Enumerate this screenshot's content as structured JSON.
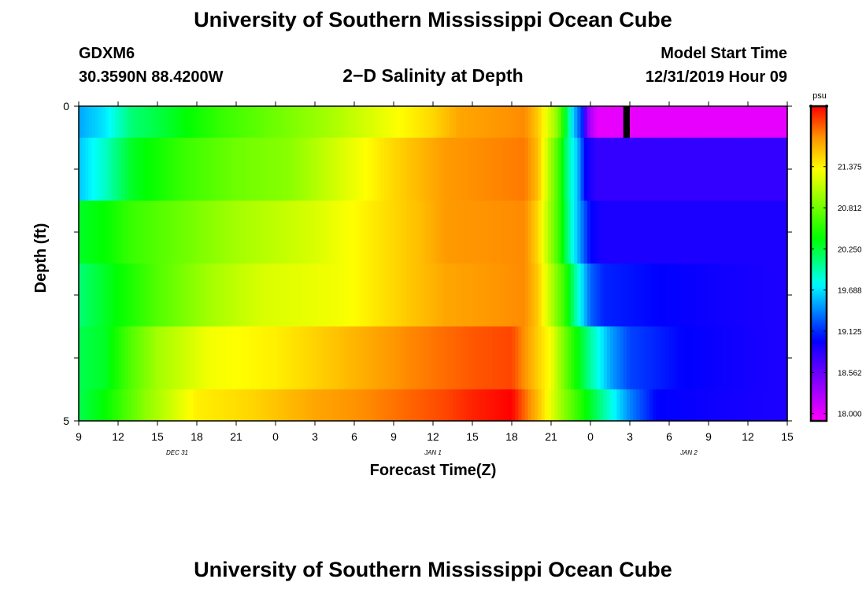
{
  "header": {
    "title": "University of Southern Mississippi Ocean Cube",
    "station_id": "GDXM6",
    "coordinates": "30.3590N 88.4200W",
    "subtitle": "2−D Salinity at Depth",
    "model_label": "Model Start Time",
    "model_time": "12/31/2019 Hour 09"
  },
  "footer": {
    "title": "University of Southern Mississippi Ocean Cube"
  },
  "chart_data": {
    "type": "heatmap",
    "title": "2−D Salinity at Depth",
    "xlabel": "Forecast Time(Z)",
    "ylabel": "Depth (ft)",
    "x_range_hours": [
      0,
      54
    ],
    "y_range": [
      0,
      5
    ],
    "x_tick_labels": [
      "9",
      "12",
      "15",
      "18",
      "21",
      "0",
      "3",
      "6",
      "9",
      "12",
      "15",
      "18",
      "21",
      "0",
      "3",
      "6",
      "9",
      "12",
      "15"
    ],
    "y_tick_labels": [
      "0",
      "5"
    ],
    "date_labels": [
      {
        "label": "DEC 31",
        "hour": 7.5
      },
      {
        "label": "JAN 1",
        "hour": 27
      },
      {
        "label": "JAN 2",
        "hour": 46.5
      }
    ],
    "colorbar": {
      "unit": "psu",
      "min": 17.9,
      "max": 22.2,
      "tick_labels": [
        "21.375",
        "20.812",
        "20.250",
        "19.688",
        "19.125",
        "18.562",
        "18.000"
      ],
      "tick_values": [
        21.375,
        20.812,
        20.25,
        19.688,
        19.125,
        18.562,
        18.0
      ]
    },
    "colors": {
      "frame": "#000000",
      "missing": "#000000"
    },
    "layers": [
      {
        "depth_range": [
          0,
          0.5
        ],
        "profile": [
          [
            0,
            19.5
          ],
          [
            2,
            19.7
          ],
          [
            4,
            20.1
          ],
          [
            7,
            20.3
          ],
          [
            11,
            20.6
          ],
          [
            15,
            20.8
          ],
          [
            19,
            21.0
          ],
          [
            23,
            21.25
          ],
          [
            27,
            21.5
          ],
          [
            29,
            21.7
          ],
          [
            34,
            21.8
          ],
          [
            35,
            21.55
          ],
          [
            36.5,
            20.9
          ],
          [
            37.2,
            20.2
          ],
          [
            37.6,
            19.7
          ],
          [
            38.4,
            19.1
          ],
          [
            38.8,
            18.4
          ],
          [
            39.5,
            18.0
          ],
          [
            54,
            18.0
          ]
        ],
        "missing": [
          41.5,
          42
        ]
      },
      {
        "depth_range": [
          0.5,
          1.5
        ],
        "profile": [
          [
            0,
            19.6
          ],
          [
            2,
            19.9
          ],
          [
            4,
            20.3
          ],
          [
            8,
            20.6
          ],
          [
            12,
            20.8
          ],
          [
            16,
            20.9
          ],
          [
            20,
            21.2
          ],
          [
            24,
            21.5
          ],
          [
            28,
            21.75
          ],
          [
            34,
            21.85
          ],
          [
            35,
            21.6
          ],
          [
            36.6,
            20.6
          ],
          [
            37.3,
            20.0
          ],
          [
            38,
            19.6
          ],
          [
            38.6,
            19.0
          ],
          [
            39.5,
            18.8
          ],
          [
            42,
            18.8
          ],
          [
            54,
            18.8
          ]
        ],
        "missing": null
      },
      {
        "depth_range": [
          1.5,
          2.5
        ],
        "profile": [
          [
            0,
            20.3
          ],
          [
            2,
            20.4
          ],
          [
            4,
            20.6
          ],
          [
            8,
            20.8
          ],
          [
            12,
            21.0
          ],
          [
            18,
            21.2
          ],
          [
            22,
            21.4
          ],
          [
            26,
            21.6
          ],
          [
            28,
            21.75
          ],
          [
            34,
            21.8
          ],
          [
            35,
            21.5
          ],
          [
            36.6,
            20.6
          ],
          [
            37.5,
            19.9
          ],
          [
            38.3,
            19.4
          ],
          [
            39,
            19.0
          ],
          [
            40,
            18.9
          ],
          [
            54,
            18.9
          ]
        ],
        "missing": null
      },
      {
        "depth_range": [
          2.5,
          3.5
        ],
        "profile": [
          [
            0,
            20.1
          ],
          [
            3,
            20.4
          ],
          [
            6,
            20.7
          ],
          [
            10,
            21.0
          ],
          [
            14,
            21.2
          ],
          [
            20,
            21.3
          ],
          [
            24,
            21.5
          ],
          [
            28,
            21.7
          ],
          [
            34,
            21.8
          ],
          [
            35,
            21.55
          ],
          [
            37,
            20.6
          ],
          [
            38,
            19.9
          ],
          [
            39,
            19.3
          ],
          [
            40,
            19.1
          ],
          [
            44,
            19.0
          ],
          [
            54,
            18.9
          ]
        ],
        "missing": null
      },
      {
        "depth_range": [
          3.5,
          4.5
        ],
        "profile": [
          [
            0,
            20.2
          ],
          [
            2,
            20.3
          ],
          [
            4,
            20.7
          ],
          [
            6,
            21.0
          ],
          [
            10,
            21.3
          ],
          [
            15,
            21.4
          ],
          [
            20,
            21.6
          ],
          [
            25,
            21.8
          ],
          [
            30,
            21.95
          ],
          [
            33,
            22.0
          ],
          [
            36,
            21.3
          ],
          [
            37.5,
            20.6
          ],
          [
            39,
            20.0
          ],
          [
            40.5,
            19.5
          ],
          [
            42,
            19.2
          ],
          [
            46,
            19.0
          ],
          [
            54,
            18.9
          ]
        ],
        "missing": null
      },
      {
        "depth_range": [
          4.5,
          5
        ],
        "profile": [
          [
            0,
            20.2
          ],
          [
            2,
            20.4
          ],
          [
            5,
            20.9
          ],
          [
            9,
            21.4
          ],
          [
            13,
            21.5
          ],
          [
            18,
            21.7
          ],
          [
            22,
            21.8
          ],
          [
            28,
            22.0
          ],
          [
            30,
            22.1
          ],
          [
            33,
            22.2
          ],
          [
            35,
            21.6
          ],
          [
            37,
            20.9
          ],
          [
            39,
            20.3
          ],
          [
            41,
            19.7
          ],
          [
            42,
            19.4
          ],
          [
            44,
            19.0
          ],
          [
            54,
            18.9
          ]
        ],
        "missing": null
      }
    ]
  }
}
